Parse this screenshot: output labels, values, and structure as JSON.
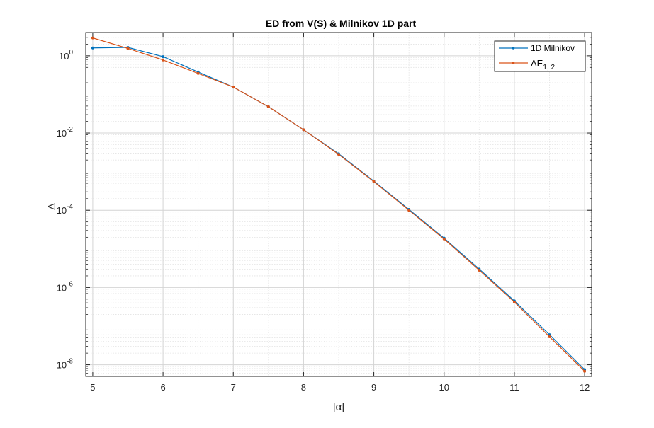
{
  "chart_data": {
    "type": "line",
    "title": "ED from V(S) & Milnikov 1D part",
    "xlabel": "|α|",
    "ylabel": "Δ",
    "xlim": [
      4.9,
      12.1
    ],
    "ylim": [
      5e-09,
      4
    ],
    "yscale": "log",
    "grid": true,
    "minor_grid": true,
    "legend_position": "top-right",
    "x_ticks": [
      5,
      6,
      7,
      8,
      9,
      10,
      11,
      12
    ],
    "y_ticks": [
      {
        "value": 1e-08,
        "base": "10",
        "exp": "-8"
      },
      {
        "value": 1e-06,
        "base": "10",
        "exp": "-6"
      },
      {
        "value": 0.0001,
        "base": "10",
        "exp": "-4"
      },
      {
        "value": 0.01,
        "base": "10",
        "exp": "-2"
      },
      {
        "value": 1,
        "base": "10",
        "exp": "0"
      }
    ],
    "series": [
      {
        "name": "1D Milnikov",
        "color": "#0072BD",
        "x": [
          5,
          5.5,
          6,
          6.5,
          7,
          7.5,
          8,
          8.5,
          9,
          9.5,
          10,
          10.5,
          11,
          11.5,
          12
        ],
        "y": [
          1.6,
          1.65,
          0.95,
          0.38,
          0.155,
          0.048,
          0.0122,
          0.0029,
          0.00057,
          0.000105,
          1.9e-05,
          3e-06,
          4.5e-07,
          6e-08,
          7.5e-09
        ]
      },
      {
        "name": "ΔE",
        "name_sub": "1, 2",
        "color": "#D95319",
        "x": [
          5,
          5.5,
          6,
          6.5,
          7,
          7.5,
          8,
          8.5,
          9,
          9.5,
          10,
          10.5,
          11,
          11.5,
          12
        ],
        "y": [
          2.9,
          1.55,
          0.78,
          0.35,
          0.155,
          0.048,
          0.0122,
          0.0028,
          0.00055,
          0.0001,
          1.8e-05,
          2.8e-06,
          4.2e-07,
          5.3e-08,
          6.8e-09
        ]
      }
    ]
  }
}
